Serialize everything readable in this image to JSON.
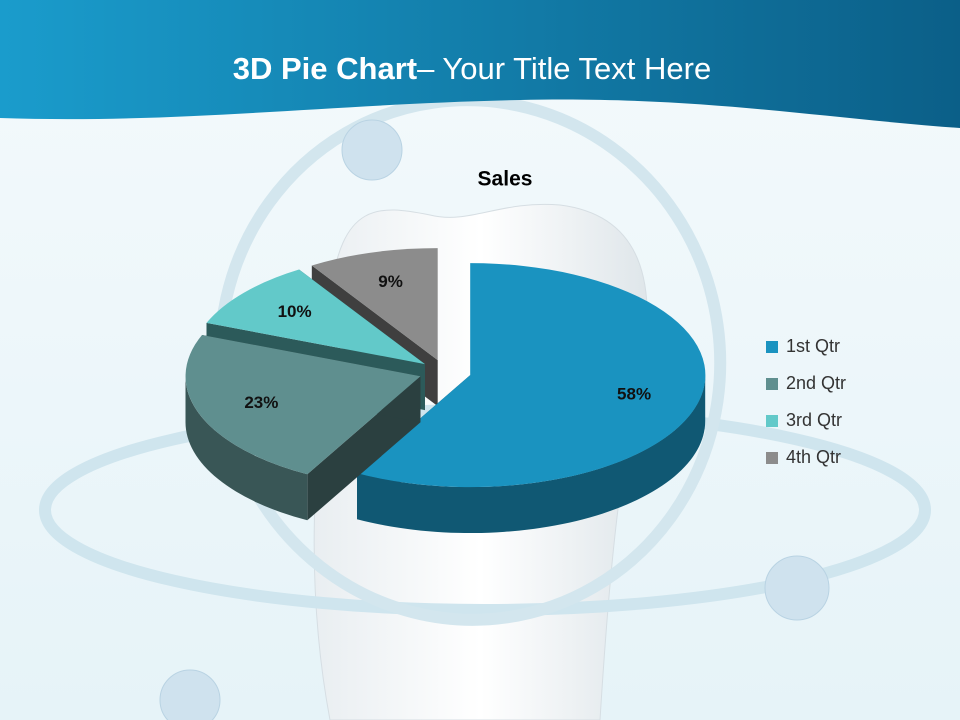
{
  "header": {
    "title_bold": "3D Pie Chart",
    "title_rest": "– Your Title Text Here"
  },
  "chart_data": {
    "type": "pie",
    "title": "Sales",
    "categories": [
      "1st Qtr",
      "2nd Qtr",
      "3rd Qtr",
      "4th Qtr"
    ],
    "values": [
      58,
      23,
      10,
      9
    ],
    "value_labels": [
      "58%",
      "23%",
      "10%",
      "9%"
    ],
    "colors": [
      "#1a93c0",
      "#5f8f8f",
      "#62c9c9",
      "#8c8c8c"
    ],
    "legend": "right"
  }
}
